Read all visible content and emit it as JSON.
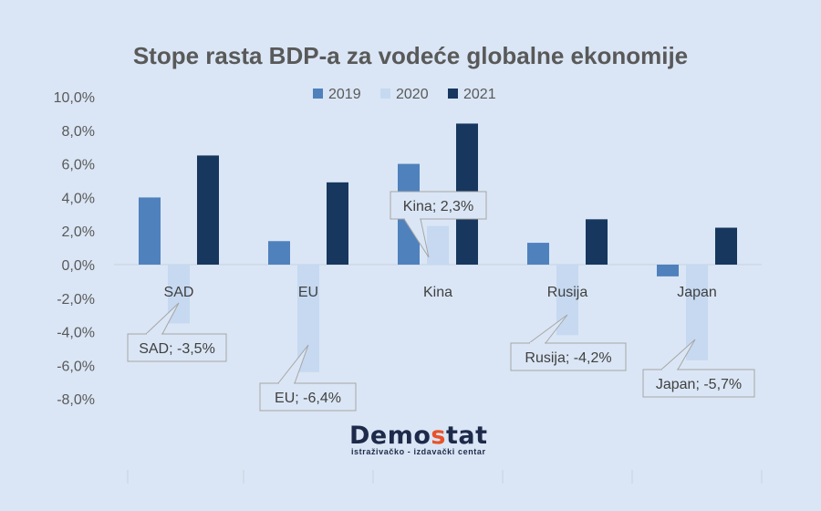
{
  "chart_data": {
    "type": "bar",
    "title": "Stope rasta BDP-a za vodeće globalne ekonomije",
    "categories": [
      "SAD",
      "EU",
      "Kina",
      "Rusija",
      "Japan"
    ],
    "series": [
      {
        "name": "2019",
        "values": [
          4.0,
          1.4,
          6.0,
          1.3,
          -0.7
        ],
        "color": "#4f81bd"
      },
      {
        "name": "2020",
        "values": [
          -3.5,
          -6.4,
          2.3,
          -4.2,
          -5.7
        ],
        "color": "#c6d9f1"
      },
      {
        "name": "2021",
        "values": [
          6.5,
          4.9,
          8.4,
          2.7,
          2.2
        ],
        "color": "#17375e"
      }
    ],
    "ylim": [
      -8,
      10
    ],
    "yticks": [
      "10,0%",
      "8,0%",
      "6,0%",
      "4,0%",
      "2,0%",
      "0,0%",
      "-2,0%",
      "-4,0%",
      "-6,0%",
      "-8,0%"
    ],
    "grid": false,
    "legend": "top",
    "callouts": [
      "SAD; -3,5%",
      "EU; -6,4%",
      "Kina; 2,3%",
      "Rusija; -4,2%",
      "Japan; -5,7%"
    ]
  },
  "logo": {
    "name_a": "Demo",
    "name_s": "s",
    "name_b": "tat",
    "tagline": "istraživačko - izdavački  centar"
  }
}
